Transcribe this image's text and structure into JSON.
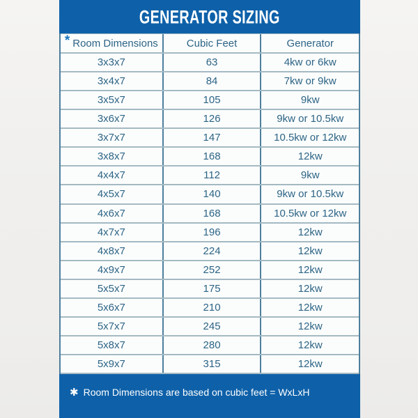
{
  "chart_data": {
    "type": "table",
    "title": "GENERATOR SIZING",
    "columns": [
      "Room Dimensions",
      "Cubic Feet",
      "Generator"
    ],
    "header_note_marker": "*",
    "rows": [
      [
        "3x3x7",
        "63",
        "4kw or 6kw"
      ],
      [
        "3x4x7",
        "84",
        "7kw or 9kw"
      ],
      [
        "3x5x7",
        "105",
        "9kw"
      ],
      [
        "3x6x7",
        "126",
        "9kw or 10.5kw"
      ],
      [
        "3x7x7",
        "147",
        "10.5kw or 12kw"
      ],
      [
        "3x8x7",
        "168",
        "12kw"
      ],
      [
        "4x4x7",
        "112",
        "9kw"
      ],
      [
        "4x5x7",
        "140",
        "9kw or 10.5kw"
      ],
      [
        "4x6x7",
        "168",
        "10.5kw or 12kw"
      ],
      [
        "4x7x7",
        "196",
        "12kw"
      ],
      [
        "4x8x7",
        "224",
        "12kw"
      ],
      [
        "4x9x7",
        "252",
        "12kw"
      ],
      [
        "5x5x7",
        "175",
        "12kw"
      ],
      [
        "5x6x7",
        "210",
        "12kw"
      ],
      [
        "5x7x7",
        "245",
        "12kw"
      ],
      [
        "5x8x7",
        "280",
        "12kw"
      ],
      [
        "5x9x7",
        "315",
        "12kw"
      ]
    ],
    "footnote_star": "✱",
    "footnote_text": "Room Dimensions are based on cubic feet = WxLxH",
    "layout": {
      "legend_position": "none",
      "grid": "on"
    }
  },
  "colors": {
    "panel_blue": "#0e61a9",
    "text_blue": "#2d6485",
    "grid_light": "#a4b9c2",
    "grid_dark": "#4d7f9c",
    "asterisk_blue": "#1b76bd",
    "page_bg": "#f1f0ee",
    "title_white": "#ffffff"
  }
}
